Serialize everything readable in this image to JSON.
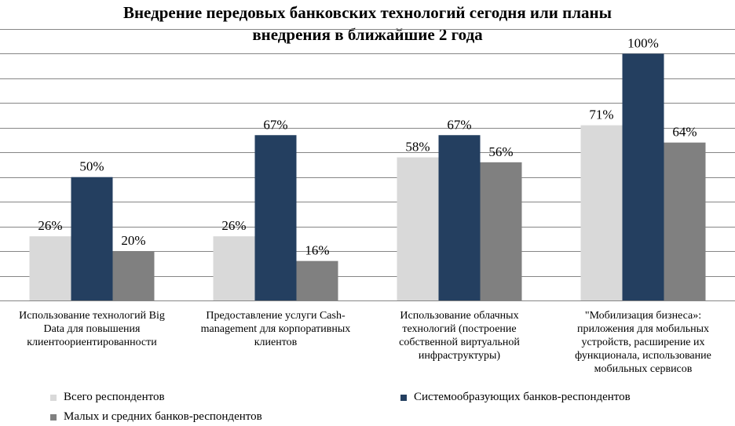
{
  "chart_data": {
    "type": "bar",
    "title_lines": [
      "Внедрение передовых банковских технологий сегодня или планы",
      "внедрения в ближайшие 2 года"
    ],
    "categories": [
      "Использование технологий Big Data для повышения клиентоориентированности",
      "Предоставление услуги Cash-management для корпоративных клиентов",
      "Использование облачных технологий (построение собственной виртуальной инфраструктуры)",
      "\"Мобилизация бизнеса»: приложения для мобильных устройств, расширение их функционала, использование мобильных сервисов"
    ],
    "category_lines": [
      [
        "Использование технологий Big",
        "Data для повышения",
        "клиентоориентированности"
      ],
      [
        "Предоставление услуги Cash-",
        "management для корпоративных",
        "клиентов"
      ],
      [
        "Использование облачных",
        "технологий (построение",
        "собственной виртуальной",
        "инфраструктуры)"
      ],
      [
        "\"Мобилизация бизнеса»:",
        "приложения для мобильных",
        "устройств, расширение их",
        "функционала, использование",
        "мобильных сервисов"
      ]
    ],
    "series": [
      {
        "name": "Всего респондентов",
        "values": [
          26,
          26,
          58,
          71
        ],
        "labels": [
          "26%",
          "26%",
          "58%",
          "71%"
        ],
        "color": "#d9d9d9"
      },
      {
        "name": "Системообразующих банков-респондентов",
        "values": [
          50,
          67,
          67,
          100
        ],
        "labels": [
          "50%",
          "67%",
          "67%",
          "100%"
        ],
        "color": "#243f60"
      },
      {
        "name": "Малых и средних банков-респондентов",
        "values": [
          20,
          16,
          56,
          64
        ],
        "labels": [
          "20%",
          "16%",
          "56%",
          "64%"
        ],
        "color": "#808080"
      }
    ],
    "ylim": [
      0,
      110
    ],
    "grid": true,
    "legend_position": "bottom",
    "gridline_color": "#868686"
  }
}
